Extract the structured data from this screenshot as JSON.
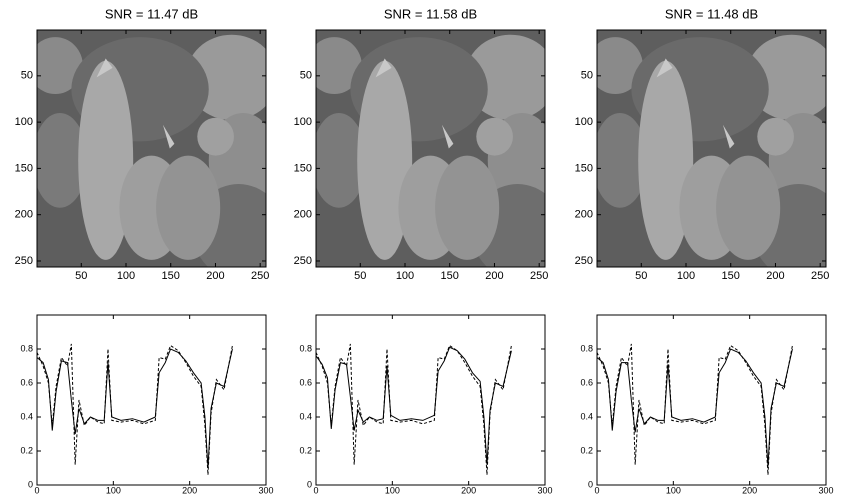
{
  "chart_data": [
    {
      "type": "image",
      "title": "SNR = 11.47 dB",
      "xlim": [
        0.5,
        256.5
      ],
      "ylim": [
        0.5,
        256.5
      ],
      "xticks": [
        50,
        100,
        150,
        200,
        250
      ],
      "yticks": [
        50,
        100,
        150,
        200,
        250
      ]
    },
    {
      "type": "image",
      "title": "SNR = 11.58 dB",
      "xlim": [
        0.5,
        256.5
      ],
      "ylim": [
        0.5,
        256.5
      ],
      "xticks": [
        50,
        100,
        150,
        200,
        250
      ],
      "yticks": [
        50,
        100,
        150,
        200,
        250
      ]
    },
    {
      "type": "image",
      "title": "SNR = 11.48 dB",
      "xlim": [
        0.5,
        256.5
      ],
      "ylim": [
        0.5,
        256.5
      ],
      "xticks": [
        50,
        100,
        150,
        200,
        250
      ],
      "yticks": [
        50,
        100,
        150,
        200,
        250
      ]
    },
    {
      "type": "line",
      "xlim": [
        0,
        300
      ],
      "ylim": [
        0,
        1
      ],
      "xticks": [
        0,
        100,
        200,
        300
      ],
      "yticks": [
        0,
        0.2,
        0.4,
        0.6,
        0.8
      ],
      "x": [
        0,
        8,
        15,
        20,
        25,
        32,
        40,
        45,
        50,
        55,
        62,
        70,
        80,
        88,
        93,
        98,
        110,
        125,
        140,
        155,
        160,
        168,
        175,
        185,
        195,
        205,
        215,
        220,
        224,
        228,
        235,
        245,
        256
      ],
      "series": [
        {
          "color": "#000000",
          "dash": false,
          "values": [
            0.75,
            0.72,
            0.62,
            0.32,
            0.55,
            0.73,
            0.72,
            0.5,
            0.3,
            0.45,
            0.36,
            0.4,
            0.38,
            0.38,
            0.72,
            0.4,
            0.38,
            0.39,
            0.37,
            0.4,
            0.66,
            0.72,
            0.8,
            0.78,
            0.73,
            0.66,
            0.6,
            0.4,
            0.1,
            0.45,
            0.6,
            0.58,
            0.8
          ]
        },
        {
          "color": "#000000",
          "dash": true,
          "values": [
            0.78,
            0.7,
            0.6,
            0.35,
            0.58,
            0.75,
            0.7,
            0.83,
            0.12,
            0.5,
            0.35,
            0.4,
            0.37,
            0.36,
            0.8,
            0.38,
            0.37,
            0.38,
            0.36,
            0.38,
            0.75,
            0.74,
            0.82,
            0.79,
            0.72,
            0.64,
            0.58,
            0.35,
            0.06,
            0.42,
            0.62,
            0.56,
            0.82
          ]
        }
      ]
    },
    {
      "type": "line",
      "xlim": [
        0,
        300
      ],
      "ylim": [
        0,
        1
      ],
      "xticks": [
        0,
        100,
        200,
        300
      ],
      "yticks": [
        0,
        0.2,
        0.4,
        0.6,
        0.8
      ],
      "x": [
        0,
        8,
        15,
        20,
        25,
        32,
        40,
        45,
        50,
        55,
        62,
        70,
        80,
        88,
        93,
        98,
        110,
        125,
        140,
        155,
        160,
        168,
        175,
        185,
        195,
        205,
        215,
        220,
        224,
        228,
        235,
        245,
        256
      ],
      "series": [
        {
          "color": "#000000",
          "dash": false,
          "values": [
            0.76,
            0.71,
            0.63,
            0.33,
            0.56,
            0.72,
            0.71,
            0.52,
            0.32,
            0.44,
            0.37,
            0.4,
            0.38,
            0.39,
            0.7,
            0.41,
            0.38,
            0.39,
            0.38,
            0.41,
            0.67,
            0.73,
            0.81,
            0.79,
            0.74,
            0.66,
            0.61,
            0.4,
            0.12,
            0.44,
            0.6,
            0.58,
            0.79
          ]
        },
        {
          "color": "#000000",
          "dash": true,
          "values": [
            0.78,
            0.7,
            0.6,
            0.35,
            0.58,
            0.75,
            0.7,
            0.83,
            0.12,
            0.5,
            0.35,
            0.4,
            0.37,
            0.36,
            0.8,
            0.38,
            0.37,
            0.38,
            0.36,
            0.38,
            0.75,
            0.74,
            0.82,
            0.79,
            0.72,
            0.64,
            0.58,
            0.35,
            0.06,
            0.42,
            0.62,
            0.56,
            0.82
          ]
        }
      ]
    },
    {
      "type": "line",
      "xlim": [
        0,
        300
      ],
      "ylim": [
        0,
        1
      ],
      "xticks": [
        0,
        100,
        200,
        300
      ],
      "yticks": [
        0,
        0.2,
        0.4,
        0.6,
        0.8
      ],
      "x": [
        0,
        8,
        15,
        20,
        25,
        32,
        40,
        45,
        50,
        55,
        62,
        70,
        80,
        88,
        93,
        98,
        110,
        125,
        140,
        155,
        160,
        168,
        175,
        185,
        195,
        205,
        215,
        220,
        224,
        228,
        235,
        245,
        256
      ],
      "series": [
        {
          "color": "#000000",
          "dash": false,
          "values": [
            0.75,
            0.72,
            0.62,
            0.32,
            0.55,
            0.72,
            0.72,
            0.5,
            0.31,
            0.45,
            0.36,
            0.4,
            0.38,
            0.38,
            0.71,
            0.4,
            0.38,
            0.39,
            0.37,
            0.4,
            0.66,
            0.72,
            0.8,
            0.78,
            0.73,
            0.66,
            0.6,
            0.4,
            0.11,
            0.45,
            0.6,
            0.58,
            0.8
          ]
        },
        {
          "color": "#000000",
          "dash": true,
          "values": [
            0.78,
            0.7,
            0.6,
            0.35,
            0.58,
            0.75,
            0.7,
            0.83,
            0.12,
            0.5,
            0.35,
            0.4,
            0.37,
            0.36,
            0.8,
            0.38,
            0.37,
            0.38,
            0.36,
            0.38,
            0.75,
            0.74,
            0.82,
            0.79,
            0.72,
            0.64,
            0.58,
            0.35,
            0.06,
            0.42,
            0.62,
            0.56,
            0.82
          ]
        }
      ]
    }
  ]
}
